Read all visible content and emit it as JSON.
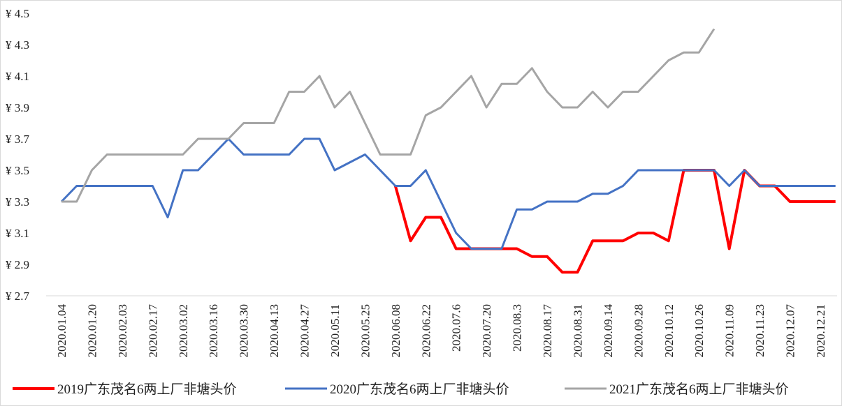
{
  "chart_data": {
    "type": "line",
    "categories": [
      "2020.01.04",
      null,
      "2020.01.20",
      null,
      "2020.02.03",
      null,
      "2020.02.17",
      null,
      "2020.03.02",
      null,
      "2020.03.16",
      null,
      "2020.03.30",
      null,
      "2020.04.13",
      null,
      "2020.04.27",
      null,
      "2020.05.11",
      null,
      "2020.05.25",
      null,
      "2020.06.08",
      null,
      "2020.06.22",
      null,
      "2020.07.6",
      null,
      "2020.07.20",
      null,
      "2020.08.3",
      null,
      "2020.08.17",
      null,
      "2020.08.31",
      null,
      "2020.09.14",
      null,
      "2020.09.28",
      null,
      "2020.10.12",
      null,
      "2020.10.26",
      null,
      "2020.11.09",
      null,
      "2020.11.23",
      null,
      "2020.12.07",
      null,
      "2020.12.21",
      null
    ],
    "series": [
      {
        "name": "2019广东茂名6两上厂非塘头价",
        "color": "#ff0000",
        "width": 4,
        "values": [
          null,
          null,
          null,
          null,
          null,
          null,
          null,
          null,
          null,
          null,
          null,
          null,
          null,
          null,
          null,
          null,
          null,
          null,
          null,
          null,
          null,
          null,
          3.4,
          3.05,
          3.2,
          3.2,
          3.0,
          3.0,
          3.0,
          3.0,
          3.0,
          2.95,
          2.95,
          2.85,
          2.85,
          3.05,
          3.05,
          3.05,
          3.1,
          3.1,
          3.05,
          3.5,
          3.5,
          3.5,
          3.0,
          3.5,
          3.4,
          3.4,
          3.3,
          3.3,
          3.3,
          3.3
        ]
      },
      {
        "name": "2020广东茂名6两上厂非塘头价",
        "color": "#4472c4",
        "width": 3,
        "values": [
          3.3,
          3.4,
          3.4,
          3.4,
          3.4,
          3.4,
          3.4,
          3.2,
          3.5,
          3.5,
          3.6,
          3.7,
          3.6,
          3.6,
          3.6,
          3.6,
          3.7,
          3.7,
          3.5,
          3.55,
          3.6,
          3.5,
          3.4,
          3.4,
          3.5,
          3.3,
          3.1,
          3.0,
          3.0,
          3.0,
          3.25,
          3.25,
          3.3,
          3.3,
          3.3,
          3.35,
          3.35,
          3.4,
          3.5,
          3.5,
          3.5,
          3.5,
          3.5,
          3.5,
          3.4,
          3.5,
          3.4,
          3.4,
          3.4,
          3.4,
          3.4,
          3.4
        ]
      },
      {
        "name": "2021广东茂名6两上厂非塘头价",
        "color": "#a5a5a5",
        "width": 3,
        "values": [
          3.3,
          3.3,
          3.5,
          3.6,
          3.6,
          3.6,
          3.6,
          3.6,
          3.6,
          3.7,
          3.7,
          3.7,
          3.8,
          3.8,
          3.8,
          4.0,
          4.0,
          4.1,
          3.9,
          4.0,
          3.8,
          3.6,
          3.6,
          3.6,
          3.85,
          3.9,
          4.0,
          4.1,
          3.9,
          4.05,
          4.05,
          4.15,
          4.0,
          3.9,
          3.9,
          4.0,
          3.9,
          4.0,
          4.0,
          4.1,
          4.2,
          4.25,
          4.25,
          4.4,
          null,
          null,
          null,
          null,
          null,
          null,
          null,
          null
        ]
      }
    ],
    "ylim": [
      2.7,
      4.5
    ],
    "yticks": [
      {
        "value": 2.7,
        "label": "¥ 2.7"
      },
      {
        "value": 2.9,
        "label": "¥ 2.9"
      },
      {
        "value": 3.1,
        "label": "¥ 3.1"
      },
      {
        "value": 3.3,
        "label": "¥ 3.3"
      },
      {
        "value": 3.5,
        "label": "¥ 3.5"
      },
      {
        "value": 3.7,
        "label": "¥ 3.7"
      },
      {
        "value": 3.9,
        "label": "¥ 3.9"
      },
      {
        "value": 4.1,
        "label": "¥ 4.1"
      },
      {
        "value": 4.3,
        "label": "¥ 4.3"
      },
      {
        "value": 4.5,
        "label": "¥ 4.5"
      }
    ],
    "grid": false,
    "legend": "bottom"
  }
}
